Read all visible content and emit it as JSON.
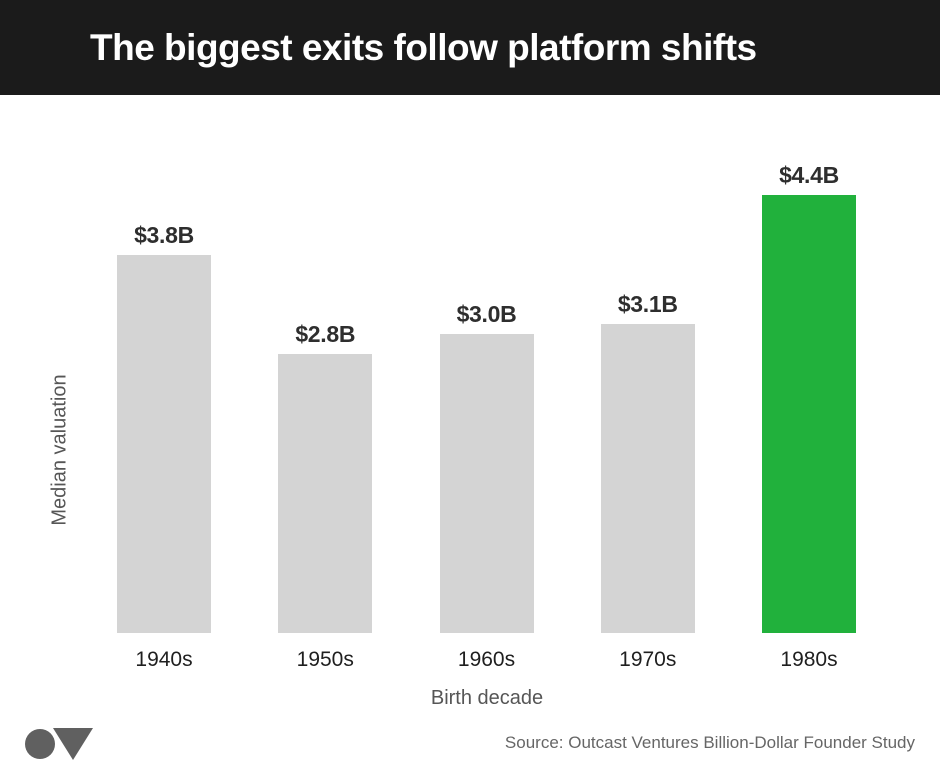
{
  "header": {
    "title": "The biggest exits follow platform shifts"
  },
  "chart_data": {
    "type": "bar",
    "title": "The biggest exits follow platform shifts",
    "categories": [
      "1940s",
      "1950s",
      "1960s",
      "1970s",
      "1980s"
    ],
    "values": [
      3.8,
      2.8,
      3.0,
      3.1,
      4.4
    ],
    "value_labels": [
      "$3.8B",
      "$2.8B",
      "$3.0B",
      "$3.1B",
      "$4.4B"
    ],
    "xlabel": "Birth decade",
    "ylabel": "Median valuation",
    "ylim": [
      0,
      4.4
    ],
    "grid": false,
    "legend": false,
    "highlight_index": 4,
    "bar_color": "#d4d4d4",
    "highlight_color": "#21b13c"
  },
  "footer": {
    "source": "Source: Outcast Ventures Billion-Dollar Founder Study"
  },
  "colors": {
    "header_bg": "#1b1b1b",
    "title_color": "#ffffff",
    "value_label_color": "#2e2e2e",
    "tick_color": "#1f1f1f",
    "axis_label_color": "#565656",
    "source_color": "#666666",
    "logo_color": "#606060"
  }
}
